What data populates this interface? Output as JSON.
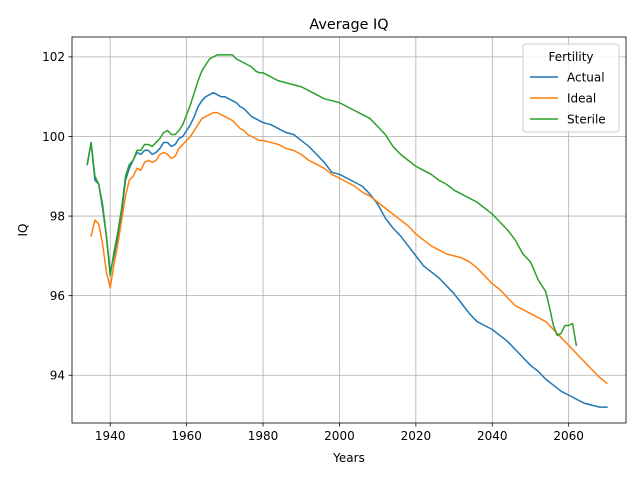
{
  "chart_data": {
    "type": "line",
    "title": "Average IQ",
    "xlabel": "Years",
    "ylabel": "IQ",
    "xlim": [
      1930,
      2075
    ],
    "ylim": [
      92.8,
      102.5
    ],
    "xticks": [
      1940,
      1960,
      1980,
      2000,
      2020,
      2040,
      2060
    ],
    "yticks": [
      94,
      96,
      98,
      100,
      102
    ],
    "grid": true,
    "legend": {
      "title": "Fertility",
      "placement": "top-right"
    },
    "series": [
      {
        "name": "Actual",
        "color": "#1f77b4",
        "x": [
          1934,
          1935,
          1936,
          1937,
          1938,
          1939,
          1940,
          1941,
          1942,
          1943,
          1944,
          1945,
          1946,
          1947,
          1948,
          1949,
          1950,
          1951,
          1952,
          1953,
          1954,
          1955,
          1956,
          1957,
          1958,
          1959,
          1960,
          1961,
          1962,
          1963,
          1964,
          1965,
          1966,
          1967,
          1968,
          1969,
          1970,
          1971,
          1972,
          1973,
          1974,
          1975,
          1976,
          1977,
          1978,
          1979,
          1980,
          1982,
          1984,
          1986,
          1988,
          1990,
          1992,
          1994,
          1996,
          1998,
          2000,
          2002,
          2004,
          2006,
          2008,
          2010,
          2012,
          2014,
          2016,
          2018,
          2020,
          2022,
          2024,
          2026,
          2028,
          2030,
          2032,
          2034,
          2036,
          2038,
          2040,
          2042,
          2044,
          2046,
          2048,
          2050,
          2052,
          2054,
          2056,
          2058,
          2060,
          2062,
          2064,
          2066,
          2068,
          2070
        ],
        "values": [
          99.3,
          99.85,
          98.9,
          98.8,
          98.2,
          97.5,
          96.6,
          97.0,
          97.5,
          98.1,
          98.9,
          99.2,
          99.4,
          99.6,
          99.55,
          99.65,
          99.65,
          99.55,
          99.6,
          99.7,
          99.85,
          99.85,
          99.75,
          99.8,
          99.95,
          100.0,
          100.15,
          100.3,
          100.5,
          100.75,
          100.9,
          101.0,
          101.05,
          101.1,
          101.05,
          101.0,
          101.0,
          100.95,
          100.9,
          100.85,
          100.75,
          100.7,
          100.6,
          100.5,
          100.45,
          100.4,
          100.35,
          100.3,
          100.2,
          100.1,
          100.05,
          99.9,
          99.75,
          99.55,
          99.35,
          99.1,
          99.05,
          98.95,
          98.85,
          98.75,
          98.55,
          98.3,
          97.95,
          97.7,
          97.5,
          97.25,
          97.0,
          96.75,
          96.6,
          96.45,
          96.25,
          96.05,
          95.8,
          95.55,
          95.35,
          95.25,
          95.15,
          95.0,
          94.85,
          94.65,
          94.45,
          94.25,
          94.1,
          93.9,
          93.75,
          93.6,
          93.5,
          93.4,
          93.3,
          93.25,
          93.2,
          93.2
        ]
      },
      {
        "name": "Ideal",
        "color": "#ff7f0e",
        "x": [
          1935,
          1936,
          1937,
          1938,
          1939,
          1940,
          1941,
          1942,
          1943,
          1944,
          1945,
          1946,
          1947,
          1948,
          1949,
          1950,
          1951,
          1952,
          1953,
          1954,
          1955,
          1956,
          1957,
          1958,
          1959,
          1960,
          1961,
          1962,
          1963,
          1964,
          1965,
          1966,
          1967,
          1968,
          1969,
          1970,
          1971,
          1972,
          1973,
          1974,
          1975,
          1976,
          1977,
          1978,
          1979,
          1980,
          1982,
          1984,
          1986,
          1988,
          1990,
          1992,
          1994,
          1996,
          1998,
          2000,
          2002,
          2004,
          2006,
          2008,
          2010,
          2012,
          2014,
          2016,
          2018,
          2020,
          2022,
          2024,
          2026,
          2028,
          2030,
          2032,
          2034,
          2036,
          2038,
          2040,
          2042,
          2044,
          2046,
          2048,
          2050,
          2052,
          2054,
          2056,
          2058,
          2060,
          2062,
          2064,
          2066,
          2068,
          2070
        ],
        "values": [
          97.5,
          97.9,
          97.8,
          97.3,
          96.6,
          96.2,
          96.8,
          97.3,
          97.9,
          98.5,
          98.9,
          99.0,
          99.2,
          99.15,
          99.35,
          99.4,
          99.35,
          99.4,
          99.55,
          99.6,
          99.55,
          99.45,
          99.5,
          99.7,
          99.8,
          99.9,
          100.0,
          100.15,
          100.3,
          100.45,
          100.5,
          100.55,
          100.6,
          100.6,
          100.55,
          100.5,
          100.45,
          100.4,
          100.3,
          100.2,
          100.15,
          100.05,
          100.0,
          99.95,
          99.9,
          99.9,
          99.85,
          99.8,
          99.7,
          99.65,
          99.55,
          99.4,
          99.3,
          99.2,
          99.05,
          98.95,
          98.85,
          98.75,
          98.6,
          98.5,
          98.35,
          98.2,
          98.05,
          97.9,
          97.75,
          97.55,
          97.4,
          97.25,
          97.15,
          97.05,
          97.0,
          96.95,
          96.85,
          96.7,
          96.5,
          96.3,
          96.15,
          95.95,
          95.75,
          95.65,
          95.55,
          95.45,
          95.35,
          95.15,
          94.95,
          94.75,
          94.55,
          94.35,
          94.15,
          93.95,
          93.8
        ]
      },
      {
        "name": "Sterile",
        "color": "#2ca02c",
        "x": [
          1934,
          1935,
          1936,
          1937,
          1938,
          1939,
          1940,
          1941,
          1942,
          1943,
          1944,
          1945,
          1946,
          1947,
          1948,
          1949,
          1950,
          1951,
          1952,
          1953,
          1954,
          1955,
          1956,
          1957,
          1958,
          1959,
          1960,
          1961,
          1962,
          1963,
          1964,
          1965,
          1966,
          1967,
          1968,
          1969,
          1970,
          1971,
          1972,
          1973,
          1974,
          1975,
          1976,
          1977,
          1978,
          1979,
          1980,
          1982,
          1984,
          1986,
          1988,
          1990,
          1992,
          1994,
          1996,
          1998,
          2000,
          2002,
          2004,
          2006,
          2008,
          2010,
          2012,
          2014,
          2016,
          2018,
          2020,
          2022,
          2024,
          2026,
          2028,
          2030,
          2032,
          2034,
          2036,
          2038,
          2040,
          2042,
          2044,
          2046,
          2048,
          2050,
          2052,
          2054,
          2055,
          2056,
          2057,
          2058,
          2059,
          2060,
          2061,
          2062
        ],
        "values": [
          99.3,
          99.85,
          99.0,
          98.8,
          98.3,
          97.5,
          96.5,
          97.1,
          97.6,
          98.2,
          99.0,
          99.3,
          99.4,
          99.65,
          99.65,
          99.8,
          99.8,
          99.75,
          99.85,
          99.95,
          100.1,
          100.15,
          100.05,
          100.05,
          100.15,
          100.3,
          100.55,
          100.8,
          101.1,
          101.4,
          101.65,
          101.8,
          101.95,
          102.0,
          102.05,
          102.05,
          102.05,
          102.05,
          102.05,
          101.95,
          101.9,
          101.85,
          101.8,
          101.75,
          101.65,
          101.6,
          101.6,
          101.5,
          101.4,
          101.35,
          101.3,
          101.25,
          101.15,
          101.05,
          100.95,
          100.9,
          100.85,
          100.75,
          100.65,
          100.55,
          100.45,
          100.25,
          100.05,
          99.75,
          99.55,
          99.4,
          99.25,
          99.15,
          99.05,
          98.9,
          98.8,
          98.65,
          98.55,
          98.45,
          98.35,
          98.2,
          98.05,
          97.85,
          97.65,
          97.4,
          97.05,
          96.85,
          96.4,
          96.1,
          95.7,
          95.25,
          95.0,
          95.05,
          95.25,
          95.25,
          95.3,
          94.75
        ]
      }
    ]
  }
}
